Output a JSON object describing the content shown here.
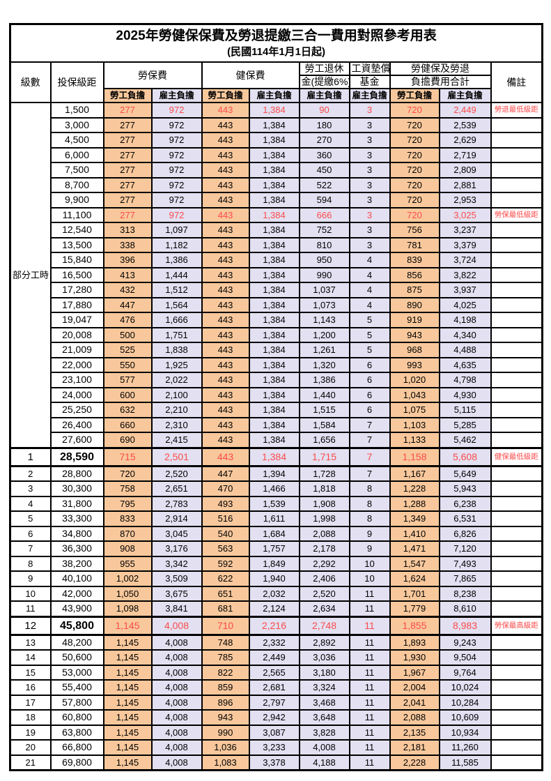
{
  "title": "2025年勞健保保費及勞退提繳三合一費用對照參考用表",
  "subtitle": "(民國114年1月1日起)",
  "colors": {
    "employee_bg": "#f8c89c",
    "employer_bg": "#e2e0f1",
    "highlight_red": "#fb4b4b",
    "border": "#000000"
  },
  "header": {
    "level": "級數",
    "bracket": "投保級距",
    "labor_ins": "勞保費",
    "health_ins": "健保費",
    "pension_line1": "勞工退休",
    "pension_line2": "金(提繳6%)",
    "wage_fund_line1": "工資墊償",
    "wage_fund_line2": "基金",
    "total_line1": "勞健保及勞退",
    "total_line2": "負擔費用合計",
    "note": "備註",
    "employee": "勞工負擔",
    "employer": "雇主負擔"
  },
  "part_time_label": "部分工時",
  "rows": [
    {
      "level": null,
      "bracket": "1,500",
      "values": [
        "277",
        "972",
        "443",
        "1,384",
        "90",
        "3",
        "720",
        "2,449"
      ],
      "note": "勞退最低級距",
      "red": true,
      "big": false
    },
    {
      "level": null,
      "bracket": "3,000",
      "values": [
        "277",
        "972",
        "443",
        "1,384",
        "180",
        "3",
        "720",
        "2,539"
      ],
      "note": "",
      "red": false,
      "big": false
    },
    {
      "level": null,
      "bracket": "4,500",
      "values": [
        "277",
        "972",
        "443",
        "1,384",
        "270",
        "3",
        "720",
        "2,629"
      ],
      "note": "",
      "red": false,
      "big": false
    },
    {
      "level": null,
      "bracket": "6,000",
      "values": [
        "277",
        "972",
        "443",
        "1,384",
        "360",
        "3",
        "720",
        "2,719"
      ],
      "note": "",
      "red": false,
      "big": false
    },
    {
      "level": null,
      "bracket": "7,500",
      "values": [
        "277",
        "972",
        "443",
        "1,384",
        "450",
        "3",
        "720",
        "2,809"
      ],
      "note": "",
      "red": false,
      "big": false
    },
    {
      "level": null,
      "bracket": "8,700",
      "values": [
        "277",
        "972",
        "443",
        "1,384",
        "522",
        "3",
        "720",
        "2,881"
      ],
      "note": "",
      "red": false,
      "big": false
    },
    {
      "level": null,
      "bracket": "9,900",
      "values": [
        "277",
        "972",
        "443",
        "1,384",
        "594",
        "3",
        "720",
        "2,953"
      ],
      "note": "",
      "red": false,
      "big": false
    },
    {
      "level": null,
      "bracket": "11,100",
      "values": [
        "277",
        "972",
        "443",
        "1,384",
        "666",
        "3",
        "720",
        "3,025"
      ],
      "note": "勞保最低級距",
      "red": true,
      "big": false
    },
    {
      "level": null,
      "bracket": "12,540",
      "values": [
        "313",
        "1,097",
        "443",
        "1,384",
        "752",
        "3",
        "756",
        "3,237"
      ],
      "note": "",
      "red": false,
      "big": false
    },
    {
      "level": null,
      "bracket": "13,500",
      "values": [
        "338",
        "1,182",
        "443",
        "1,384",
        "810",
        "3",
        "781",
        "3,379"
      ],
      "note": "",
      "red": false,
      "big": false
    },
    {
      "level": null,
      "bracket": "15,840",
      "values": [
        "396",
        "1,386",
        "443",
        "1,384",
        "950",
        "4",
        "839",
        "3,724"
      ],
      "note": "",
      "red": false,
      "big": false
    },
    {
      "level": null,
      "bracket": "16,500",
      "values": [
        "413",
        "1,444",
        "443",
        "1,384",
        "990",
        "4",
        "856",
        "3,822"
      ],
      "note": "",
      "red": false,
      "big": false
    },
    {
      "level": null,
      "bracket": "17,280",
      "values": [
        "432",
        "1,512",
        "443",
        "1,384",
        "1,037",
        "4",
        "875",
        "3,937"
      ],
      "note": "",
      "red": false,
      "big": false
    },
    {
      "level": null,
      "bracket": "17,880",
      "values": [
        "447",
        "1,564",
        "443",
        "1,384",
        "1,073",
        "4",
        "890",
        "4,025"
      ],
      "note": "",
      "red": false,
      "big": false
    },
    {
      "level": null,
      "bracket": "19,047",
      "values": [
        "476",
        "1,666",
        "443",
        "1,384",
        "1,143",
        "5",
        "919",
        "4,198"
      ],
      "note": "",
      "red": false,
      "big": false
    },
    {
      "level": null,
      "bracket": "20,008",
      "values": [
        "500",
        "1,751",
        "443",
        "1,384",
        "1,200",
        "5",
        "943",
        "4,340"
      ],
      "note": "",
      "red": false,
      "big": false
    },
    {
      "level": null,
      "bracket": "21,009",
      "values": [
        "525",
        "1,838",
        "443",
        "1,384",
        "1,261",
        "5",
        "968",
        "4,488"
      ],
      "note": "",
      "red": false,
      "big": false
    },
    {
      "level": null,
      "bracket": "22,000",
      "values": [
        "550",
        "1,925",
        "443",
        "1,384",
        "1,320",
        "6",
        "993",
        "4,635"
      ],
      "note": "",
      "red": false,
      "big": false
    },
    {
      "level": null,
      "bracket": "23,100",
      "values": [
        "577",
        "2,022",
        "443",
        "1,384",
        "1,386",
        "6",
        "1,020",
        "4,798"
      ],
      "note": "",
      "red": false,
      "big": false
    },
    {
      "level": null,
      "bracket": "24,000",
      "values": [
        "600",
        "2,100",
        "443",
        "1,384",
        "1,440",
        "6",
        "1,043",
        "4,930"
      ],
      "note": "",
      "red": false,
      "big": false
    },
    {
      "level": null,
      "bracket": "25,250",
      "values": [
        "632",
        "2,210",
        "443",
        "1,384",
        "1,515",
        "6",
        "1,075",
        "5,115"
      ],
      "note": "",
      "red": false,
      "big": false
    },
    {
      "level": null,
      "bracket": "26,400",
      "values": [
        "660",
        "2,310",
        "443",
        "1,384",
        "1,584",
        "7",
        "1,103",
        "5,285"
      ],
      "note": "",
      "red": false,
      "big": false
    },
    {
      "level": null,
      "bracket": "27,600",
      "values": [
        "690",
        "2,415",
        "443",
        "1,384",
        "1,656",
        "7",
        "1,133",
        "5,462"
      ],
      "note": "",
      "red": false,
      "big": false
    },
    {
      "level": "1",
      "bracket": "28,590",
      "values": [
        "715",
        "2,501",
        "443",
        "1,384",
        "1,715",
        "7",
        "1,158",
        "5,608"
      ],
      "note": "健保最低級距",
      "red": true,
      "big": true
    },
    {
      "level": "2",
      "bracket": "28,800",
      "values": [
        "720",
        "2,520",
        "447",
        "1,394",
        "1,728",
        "7",
        "1,167",
        "5,649"
      ],
      "note": "",
      "red": false,
      "big": false
    },
    {
      "level": "3",
      "bracket": "30,300",
      "values": [
        "758",
        "2,651",
        "470",
        "1,466",
        "1,818",
        "8",
        "1,228",
        "5,943"
      ],
      "note": "",
      "red": false,
      "big": false
    },
    {
      "level": "4",
      "bracket": "31,800",
      "values": [
        "795",
        "2,783",
        "493",
        "1,539",
        "1,908",
        "8",
        "1,288",
        "6,238"
      ],
      "note": "",
      "red": false,
      "big": false
    },
    {
      "level": "5",
      "bracket": "33,300",
      "values": [
        "833",
        "2,914",
        "516",
        "1,611",
        "1,998",
        "8",
        "1,349",
        "6,531"
      ],
      "note": "",
      "red": false,
      "big": false
    },
    {
      "level": "6",
      "bracket": "34,800",
      "values": [
        "870",
        "3,045",
        "540",
        "1,684",
        "2,088",
        "9",
        "1,410",
        "6,826"
      ],
      "note": "",
      "red": false,
      "big": false
    },
    {
      "level": "7",
      "bracket": "36,300",
      "values": [
        "908",
        "3,176",
        "563",
        "1,757",
        "2,178",
        "9",
        "1,471",
        "7,120"
      ],
      "note": "",
      "red": false,
      "big": false
    },
    {
      "level": "8",
      "bracket": "38,200",
      "values": [
        "955",
        "3,342",
        "592",
        "1,849",
        "2,292",
        "10",
        "1,547",
        "7,493"
      ],
      "note": "",
      "red": false,
      "big": false
    },
    {
      "level": "9",
      "bracket": "40,100",
      "values": [
        "1,002",
        "3,509",
        "622",
        "1,940",
        "2,406",
        "10",
        "1,624",
        "7,865"
      ],
      "note": "",
      "red": false,
      "big": false
    },
    {
      "level": "10",
      "bracket": "42,000",
      "values": [
        "1,050",
        "3,675",
        "651",
        "2,032",
        "2,520",
        "11",
        "1,701",
        "8,238"
      ],
      "note": "",
      "red": false,
      "big": false
    },
    {
      "level": "11",
      "bracket": "43,900",
      "values": [
        "1,098",
        "3,841",
        "681",
        "2,124",
        "2,634",
        "11",
        "1,779",
        "8,610"
      ],
      "note": "",
      "red": false,
      "big": false
    },
    {
      "level": "12",
      "bracket": "45,800",
      "values": [
        "1,145",
        "4,008",
        "710",
        "2,216",
        "2,748",
        "11",
        "1,855",
        "8,983"
      ],
      "note": "勞保最高級距",
      "red": true,
      "big": true
    },
    {
      "level": "13",
      "bracket": "48,200",
      "values": [
        "1,145",
        "4,008",
        "748",
        "2,332",
        "2,892",
        "11",
        "1,893",
        "9,243"
      ],
      "note": "",
      "red": false,
      "big": false
    },
    {
      "level": "14",
      "bracket": "50,600",
      "values": [
        "1,145",
        "4,008",
        "785",
        "2,449",
        "3,036",
        "11",
        "1,930",
        "9,504"
      ],
      "note": "",
      "red": false,
      "big": false
    },
    {
      "level": "15",
      "bracket": "53,000",
      "values": [
        "1,145",
        "4,008",
        "822",
        "2,565",
        "3,180",
        "11",
        "1,967",
        "9,764"
      ],
      "note": "",
      "red": false,
      "big": false
    },
    {
      "level": "16",
      "bracket": "55,400",
      "values": [
        "1,145",
        "4,008",
        "859",
        "2,681",
        "3,324",
        "11",
        "2,004",
        "10,024"
      ],
      "note": "",
      "red": false,
      "big": false
    },
    {
      "level": "17",
      "bracket": "57,800",
      "values": [
        "1,145",
        "4,008",
        "896",
        "2,797",
        "3,468",
        "11",
        "2,041",
        "10,284"
      ],
      "note": "",
      "red": false,
      "big": false
    },
    {
      "level": "18",
      "bracket": "60,800",
      "values": [
        "1,145",
        "4,008",
        "943",
        "2,942",
        "3,648",
        "11",
        "2,088",
        "10,609"
      ],
      "note": "",
      "red": false,
      "big": false
    },
    {
      "level": "19",
      "bracket": "63,800",
      "values": [
        "1,145",
        "4,008",
        "990",
        "3,087",
        "3,828",
        "11",
        "2,135",
        "10,934"
      ],
      "note": "",
      "red": false,
      "big": false
    },
    {
      "level": "20",
      "bracket": "66,800",
      "values": [
        "1,145",
        "4,008",
        "1,036",
        "3,233",
        "4,008",
        "11",
        "2,181",
        "11,260"
      ],
      "note": "",
      "red": false,
      "big": false
    },
    {
      "level": "21",
      "bracket": "69,800",
      "values": [
        "1,145",
        "4,008",
        "1,083",
        "3,378",
        "4,188",
        "11",
        "2,228",
        "11,585"
      ],
      "note": "",
      "red": false,
      "big": false
    }
  ]
}
